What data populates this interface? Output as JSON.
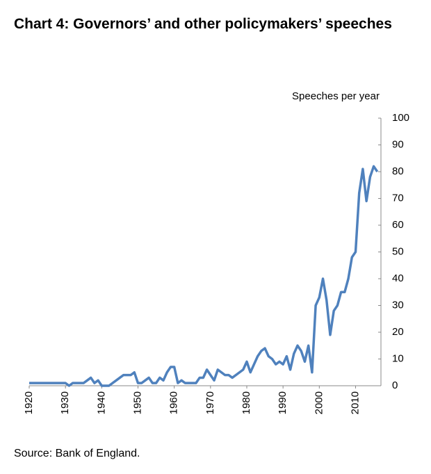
{
  "chart_data": {
    "type": "line",
    "title": "Chart 4: Governors’ and other policymakers’ speeches",
    "y_axis_label": "Speeches per year",
    "source": "Source:  Bank of England.",
    "x": [
      1920,
      1921,
      1922,
      1923,
      1924,
      1925,
      1926,
      1927,
      1928,
      1929,
      1930,
      1931,
      1932,
      1933,
      1934,
      1935,
      1936,
      1937,
      1938,
      1939,
      1940,
      1941,
      1942,
      1943,
      1944,
      1945,
      1946,
      1947,
      1948,
      1949,
      1950,
      1951,
      1952,
      1953,
      1954,
      1955,
      1956,
      1957,
      1958,
      1959,
      1960,
      1961,
      1962,
      1963,
      1964,
      1965,
      1966,
      1967,
      1968,
      1969,
      1970,
      1971,
      1972,
      1973,
      1974,
      1975,
      1976,
      1977,
      1978,
      1979,
      1980,
      1981,
      1982,
      1983,
      1984,
      1985,
      1986,
      1987,
      1988,
      1989,
      1990,
      1991,
      1992,
      1993,
      1994,
      1995,
      1996,
      1997,
      1998,
      1999,
      2000,
      2001,
      2002,
      2003,
      2004,
      2005,
      2006,
      2007,
      2008,
      2009,
      2010,
      2011,
      2012,
      2013,
      2014,
      2015,
      2016
    ],
    "series": [
      {
        "name": "Speeches",
        "color": "#4f81bd",
        "values": [
          1,
          1,
          1,
          1,
          1,
          1,
          1,
          1,
          1,
          1,
          1,
          0,
          1,
          1,
          1,
          1,
          2,
          3,
          1,
          2,
          0,
          0,
          0,
          1,
          2,
          3,
          4,
          4,
          4,
          5,
          1,
          1,
          2,
          3,
          1,
          1,
          3,
          2,
          5,
          7,
          7,
          1,
          2,
          1,
          1,
          1,
          1,
          3,
          3,
          6,
          4,
          2,
          6,
          5,
          4,
          4,
          3,
          4,
          5,
          6,
          9,
          5,
          8,
          11,
          13,
          14,
          11,
          10,
          8,
          9,
          8,
          11,
          6,
          12,
          15,
          13,
          9,
          15,
          5,
          30,
          33,
          40,
          32,
          19,
          28,
          30,
          35,
          35,
          40,
          48,
          50,
          72,
          81,
          69,
          78,
          82,
          80
        ]
      }
    ],
    "xlim": [
      1920,
      2017
    ],
    "xticks": [
      1920,
      1930,
      1940,
      1950,
      1960,
      1970,
      1980,
      1990,
      2000,
      2010
    ],
    "ylim": [
      0,
      100
    ],
    "yticks": [
      0,
      10,
      20,
      30,
      40,
      50,
      60,
      70,
      80,
      90,
      100
    ]
  }
}
